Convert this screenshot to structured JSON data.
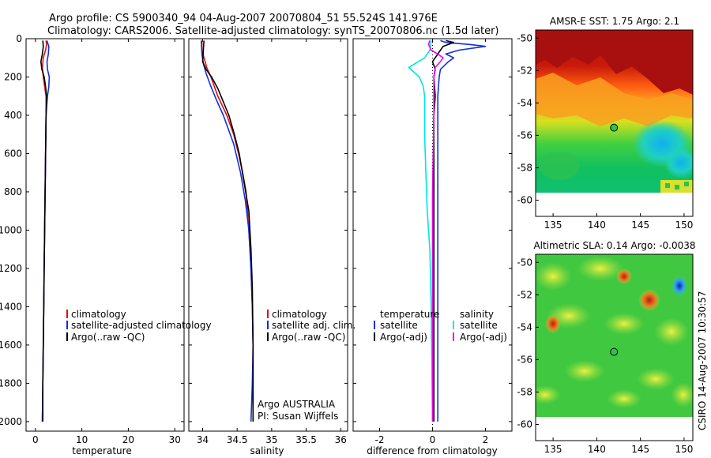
{
  "header": {
    "line1": "Argo profile: CS 5900340_94 04-Aug-2007 20070804_51 55.524S 141.976E",
    "line2": "Climatology: CARS2006. Satellite-adjusted climatology: synTS_20070806.nc (1.5d later)"
  },
  "side_label": "CSIRO 14-Aug-2007 10:30:57",
  "colors": {
    "climatology": "#e01010",
    "satellite": "#1030e0",
    "argo": "#000000",
    "temp_clim_diff": "#00e5e5",
    "sal_diff": "#ee00ee"
  },
  "chart_data": [
    {
      "type": "line",
      "id": "temperature",
      "xlabel": "temperature",
      "xlim": [
        -2,
        32
      ],
      "ylim": [
        2050,
        0
      ],
      "xticks": [
        0,
        10,
        20,
        30
      ],
      "yticks": [
        0,
        200,
        400,
        600,
        800,
        1000,
        1200,
        1400,
        1600,
        1800,
        2000
      ],
      "legend": [
        "climatology",
        "satellite-adjusted climatology",
        "Argo(..raw -QC)"
      ],
      "series": [
        {
          "name": "climatology",
          "color": "#e01010",
          "points": [
            [
              2.3,
              10
            ],
            [
              2.4,
              30
            ],
            [
              2.2,
              60
            ],
            [
              1.7,
              100
            ],
            [
              1.5,
              150
            ],
            [
              1.7,
              200
            ],
            [
              2.0,
              250
            ],
            [
              2.3,
              300
            ],
            [
              2.3,
              400
            ],
            [
              2.2,
              600
            ],
            [
              2.1,
              800
            ],
            [
              2.0,
              1000
            ],
            [
              1.9,
              1200
            ],
            [
              1.8,
              1400
            ],
            [
              1.7,
              1600
            ],
            [
              1.6,
              1800
            ],
            [
              1.5,
              2000
            ]
          ]
        },
        {
          "name": "satellite-adjusted climatology",
          "color": "#1030e0",
          "points": [
            [
              2.5,
              10
            ],
            [
              2.6,
              20
            ],
            [
              2.9,
              40
            ],
            [
              2.8,
              80
            ],
            [
              2.5,
              120
            ],
            [
              2.6,
              160
            ],
            [
              3.0,
              200
            ],
            [
              2.9,
              250
            ],
            [
              2.6,
              300
            ],
            [
              2.3,
              400
            ],
            [
              2.2,
              600
            ],
            [
              2.1,
              800
            ],
            [
              2.0,
              1000
            ],
            [
              1.9,
              1200
            ],
            [
              1.8,
              1400
            ],
            [
              1.7,
              1600
            ],
            [
              1.6,
              1800
            ],
            [
              1.5,
              2000
            ]
          ]
        },
        {
          "name": "Argo(..raw -QC)",
          "color": "#000000",
          "points": [
            [
              1.6,
              10
            ],
            [
              1.7,
              40
            ],
            [
              1.5,
              80
            ],
            [
              1.2,
              120
            ],
            [
              1.4,
              160
            ],
            [
              1.9,
              200
            ],
            [
              2.2,
              250
            ],
            [
              2.4,
              300
            ],
            [
              2.3,
              400
            ],
            [
              2.2,
              600
            ],
            [
              2.1,
              800
            ],
            [
              2.0,
              1000
            ],
            [
              1.9,
              1200
            ],
            [
              1.8,
              1400
            ],
            [
              1.7,
              1600
            ],
            [
              1.6,
              1800
            ],
            [
              1.6,
              2000
            ]
          ]
        }
      ]
    },
    {
      "type": "line",
      "id": "salinity",
      "xlabel": "salinity",
      "xlim": [
        33.8,
        36.1
      ],
      "ylim": [
        2050,
        0
      ],
      "xticks": [
        34,
        34.5,
        35,
        35.5,
        36
      ],
      "legend": [
        "climatology",
        "satellite adj. clim.",
        "Argo(..raw -QC)"
      ],
      "annotations": [
        "Argo AUSTRALIA",
        "PI: Susan Wijffels"
      ],
      "series": [
        {
          "name": "climatology",
          "color": "#e01010",
          "points": [
            [
              33.99,
              10
            ],
            [
              33.99,
              60
            ],
            [
              34.02,
              100
            ],
            [
              34.06,
              150
            ],
            [
              34.12,
              200
            ],
            [
              34.22,
              300
            ],
            [
              34.35,
              400
            ],
            [
              34.45,
              500
            ],
            [
              34.52,
              600
            ],
            [
              34.58,
              700
            ],
            [
              34.63,
              800
            ],
            [
              34.67,
              1000
            ],
            [
              34.7,
              1200
            ],
            [
              34.72,
              1400
            ],
            [
              34.73,
              1600
            ],
            [
              34.73,
              1800
            ],
            [
              34.73,
              2000
            ]
          ]
        },
        {
          "name": "satellite adj. clim.",
          "color": "#1030e0",
          "points": [
            [
              33.98,
              10
            ],
            [
              33.99,
              80
            ],
            [
              34.01,
              130
            ],
            [
              34.05,
              180
            ],
            [
              34.12,
              250
            ],
            [
              34.2,
              320
            ],
            [
              34.3,
              400
            ],
            [
              34.38,
              480
            ],
            [
              34.45,
              550
            ],
            [
              34.55,
              700
            ],
            [
              34.62,
              850
            ],
            [
              34.67,
              1000
            ],
            [
              34.7,
              1200
            ],
            [
              34.72,
              1400
            ],
            [
              34.73,
              1600
            ],
            [
              34.72,
              1800
            ],
            [
              34.7,
              2000
            ]
          ]
        },
        {
          "name": "Argo(..raw -QC)",
          "color": "#000000",
          "points": [
            [
              34.02,
              10
            ],
            [
              34.01,
              60
            ],
            [
              34.0,
              120
            ],
            [
              34.05,
              160
            ],
            [
              34.13,
              200
            ],
            [
              34.22,
              260
            ],
            [
              34.3,
              330
            ],
            [
              34.38,
              400
            ],
            [
              34.46,
              500
            ],
            [
              34.53,
              600
            ],
            [
              34.6,
              750
            ],
            [
              34.67,
              900
            ],
            [
              34.7,
              1100
            ],
            [
              34.72,
              1300
            ],
            [
              34.73,
              1600
            ],
            [
              34.73,
              1800
            ],
            [
              34.73,
              2000
            ]
          ]
        }
      ]
    },
    {
      "type": "line",
      "id": "difference",
      "xlabel": "difference from climatology",
      "xlim": [
        -3,
        3
      ],
      "ylim": [
        2050,
        0
      ],
      "xticks": [
        -2,
        0,
        2
      ],
      "legend_headers": [
        "temperature",
        "salinity"
      ],
      "legend": [
        "satellite",
        "Argo(-adj)",
        "satellite",
        "Argo(-adj)"
      ],
      "series": [
        {
          "name": "temperature satellite",
          "color": "#1030e0",
          "points": [
            [
              0.3,
              10
            ],
            [
              0.5,
              20
            ],
            [
              1.4,
              30
            ],
            [
              2.0,
              40
            ],
            [
              1.0,
              60
            ],
            [
              0.5,
              80
            ],
            [
              0.8,
              100
            ],
            [
              0.6,
              120
            ],
            [
              0.3,
              160
            ],
            [
              0.25,
              200
            ],
            [
              0.2,
              300
            ],
            [
              0.2,
              600
            ],
            [
              0.2,
              1000
            ],
            [
              0.2,
              1400
            ],
            [
              0.2,
              2000
            ]
          ]
        },
        {
          "name": "temperature Argo(-adj)",
          "color": "#000000",
          "points": [
            [
              0.5,
              10
            ],
            [
              0.8,
              20
            ],
            [
              0.4,
              40
            ],
            [
              0.2,
              80
            ],
            [
              0.0,
              120
            ],
            [
              0.1,
              160
            ],
            [
              0.05,
              200
            ],
            [
              0.1,
              300
            ],
            [
              0.05,
              400
            ],
            [
              0.05,
              600
            ],
            [
              0.05,
              1000
            ],
            [
              0.05,
              1400
            ],
            [
              0.05,
              2000
            ]
          ]
        },
        {
          "name": "salinity satellite",
          "color": "#00e5e5",
          "points": [
            [
              -0.05,
              10
            ],
            [
              -0.1,
              60
            ],
            [
              -0.3,
              100
            ],
            [
              -0.9,
              150
            ],
            [
              -0.5,
              200
            ],
            [
              -0.35,
              250
            ],
            [
              -0.3,
              300
            ],
            [
              -0.3,
              500
            ],
            [
              -0.25,
              700
            ],
            [
              -0.2,
              900
            ],
            [
              -0.1,
              1100
            ],
            [
              -0.05,
              1400
            ],
            [
              0.0,
              2000
            ]
          ]
        },
        {
          "name": "salinity Argo(-adj)",
          "color": "#ee00ee",
          "points": [
            [
              -0.1,
              10
            ],
            [
              -0.15,
              30
            ],
            [
              -0.05,
              60
            ],
            [
              0.2,
              80
            ],
            [
              0.4,
              100
            ],
            [
              0.3,
              120
            ],
            [
              0.1,
              150
            ],
            [
              0.05,
              200
            ],
            [
              0.05,
              400
            ],
            [
              0.0,
              800
            ],
            [
              0.0,
              1200
            ],
            [
              0.0,
              2000
            ]
          ]
        }
      ]
    },
    {
      "type": "heatmap",
      "id": "sst_map",
      "title": "AMSR-E SST: 1.75 Argo: 2.1",
      "xlim": [
        133,
        151
      ],
      "ylim": [
        -61,
        -49.5
      ],
      "xticks": [
        135,
        140,
        145,
        150
      ],
      "yticks": [
        -50,
        -52,
        -54,
        -56,
        -58,
        -60
      ],
      "marker": {
        "lon": 141.976,
        "lat": -55.524
      }
    },
    {
      "type": "heatmap",
      "id": "sla_map",
      "title": "Altimetric SLA: 0.14 Argo: -0.0038",
      "xlim": [
        133,
        151
      ],
      "ylim": [
        -61,
        -49.5
      ],
      "xticks": [
        135,
        140,
        145,
        150
      ],
      "yticks": [
        -50,
        -52,
        -54,
        -56,
        -58,
        -60
      ],
      "marker": {
        "lon": 141.976,
        "lat": -55.524
      }
    }
  ]
}
